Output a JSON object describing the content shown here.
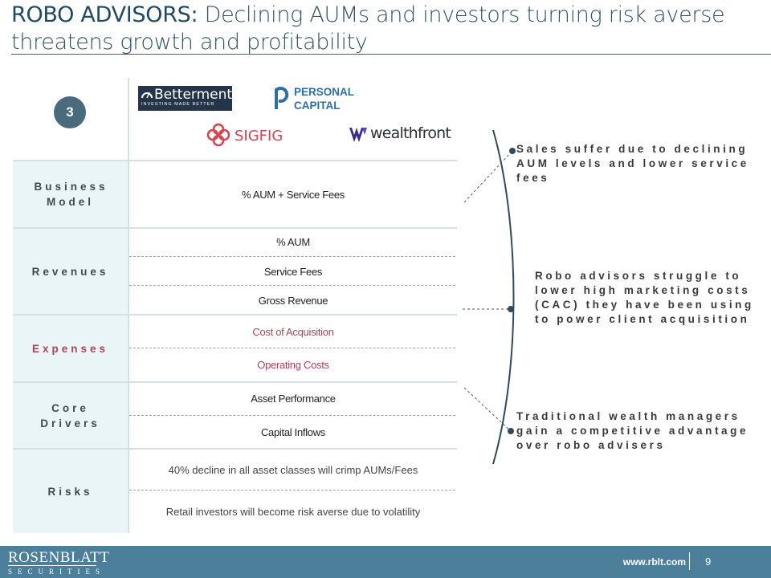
{
  "title": {
    "bold": "ROBO ADVISORS:",
    "rest": "Declining AUMs and investors turning risk averse threatens growth and profitability"
  },
  "badge": "3",
  "logos": {
    "betterment_name": "Betterment",
    "betterment_tagline": "INVESTING MADE BETTER",
    "personal_line1": "PERSONAL",
    "personal_line2": "CAPITAL",
    "sigfig": "SIGFIG",
    "wealthfront": "wealthfront"
  },
  "rows": {
    "business_model": {
      "label": "Business Model",
      "items": [
        "% AUM  + Service Fees"
      ]
    },
    "revenues": {
      "label": "Revenues",
      "items": [
        "% AUM",
        "Service Fees",
        "Gross Revenue"
      ]
    },
    "expenses": {
      "label": "Expenses",
      "items": [
        "Cost of Acquisition",
        "Operating Costs"
      ]
    },
    "core_drivers": {
      "label": "Core Drivers",
      "items": [
        "Asset Performance",
        "Capital Inflows"
      ]
    },
    "risks": {
      "label": "Risks",
      "items": [
        "40% decline in all asset classes will crimp AUMs/Fees",
        "Retail investors will become risk averse due to volatility"
      ]
    }
  },
  "annotations": [
    "Sales suffer due to declining AUM levels and lower service fees",
    "Robo advisors struggle to lower high marketing costs (CAC) they have been using to power client acquisition",
    "Traditional wealth managers gain a competitive advantage over robo advisers"
  ],
  "colors": {
    "label_bg": "#eaf5f8",
    "expense_red": "#b04356",
    "footer": "#4b7f9a",
    "title": "#2f5268"
  },
  "footer": {
    "brand": "ROSENBLATT",
    "brand_sub": "SECURITIES",
    "url": "www.rblt.com",
    "page": "9"
  }
}
